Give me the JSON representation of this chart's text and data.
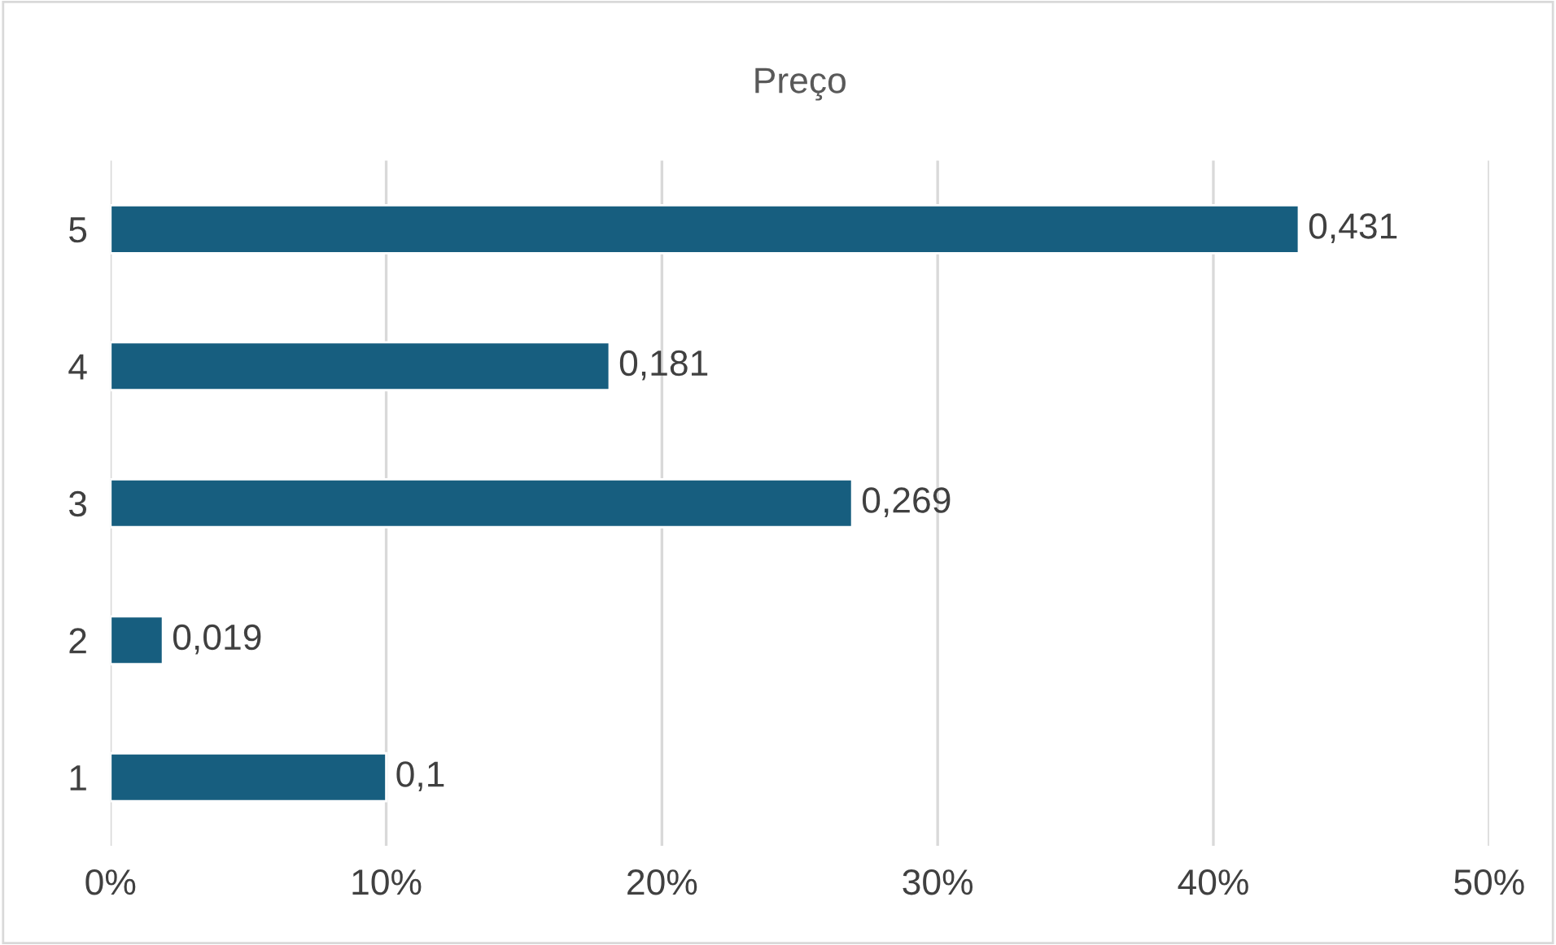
{
  "chart_data": {
    "type": "bar",
    "orientation": "horizontal",
    "title": "Preço",
    "categories": [
      "5",
      "4",
      "3",
      "2",
      "1"
    ],
    "values": [
      0.431,
      0.181,
      0.269,
      0.019,
      0.1
    ],
    "value_labels": [
      "0,431",
      "0,181",
      "0,269",
      "0,019",
      "0,1"
    ],
    "color": "#175e7f",
    "xlim": [
      0,
      0.5
    ],
    "xticks": [
      {
        "value": 0,
        "label": "0%"
      },
      {
        "value": 0.1,
        "label": "10%"
      },
      {
        "value": 0.2,
        "label": "20%"
      },
      {
        "value": 0.3,
        "label": "30%"
      },
      {
        "value": 0.4,
        "label": "40%"
      },
      {
        "value": 0.5,
        "label": "50%"
      }
    ],
    "grid": "x",
    "legend": false
  }
}
